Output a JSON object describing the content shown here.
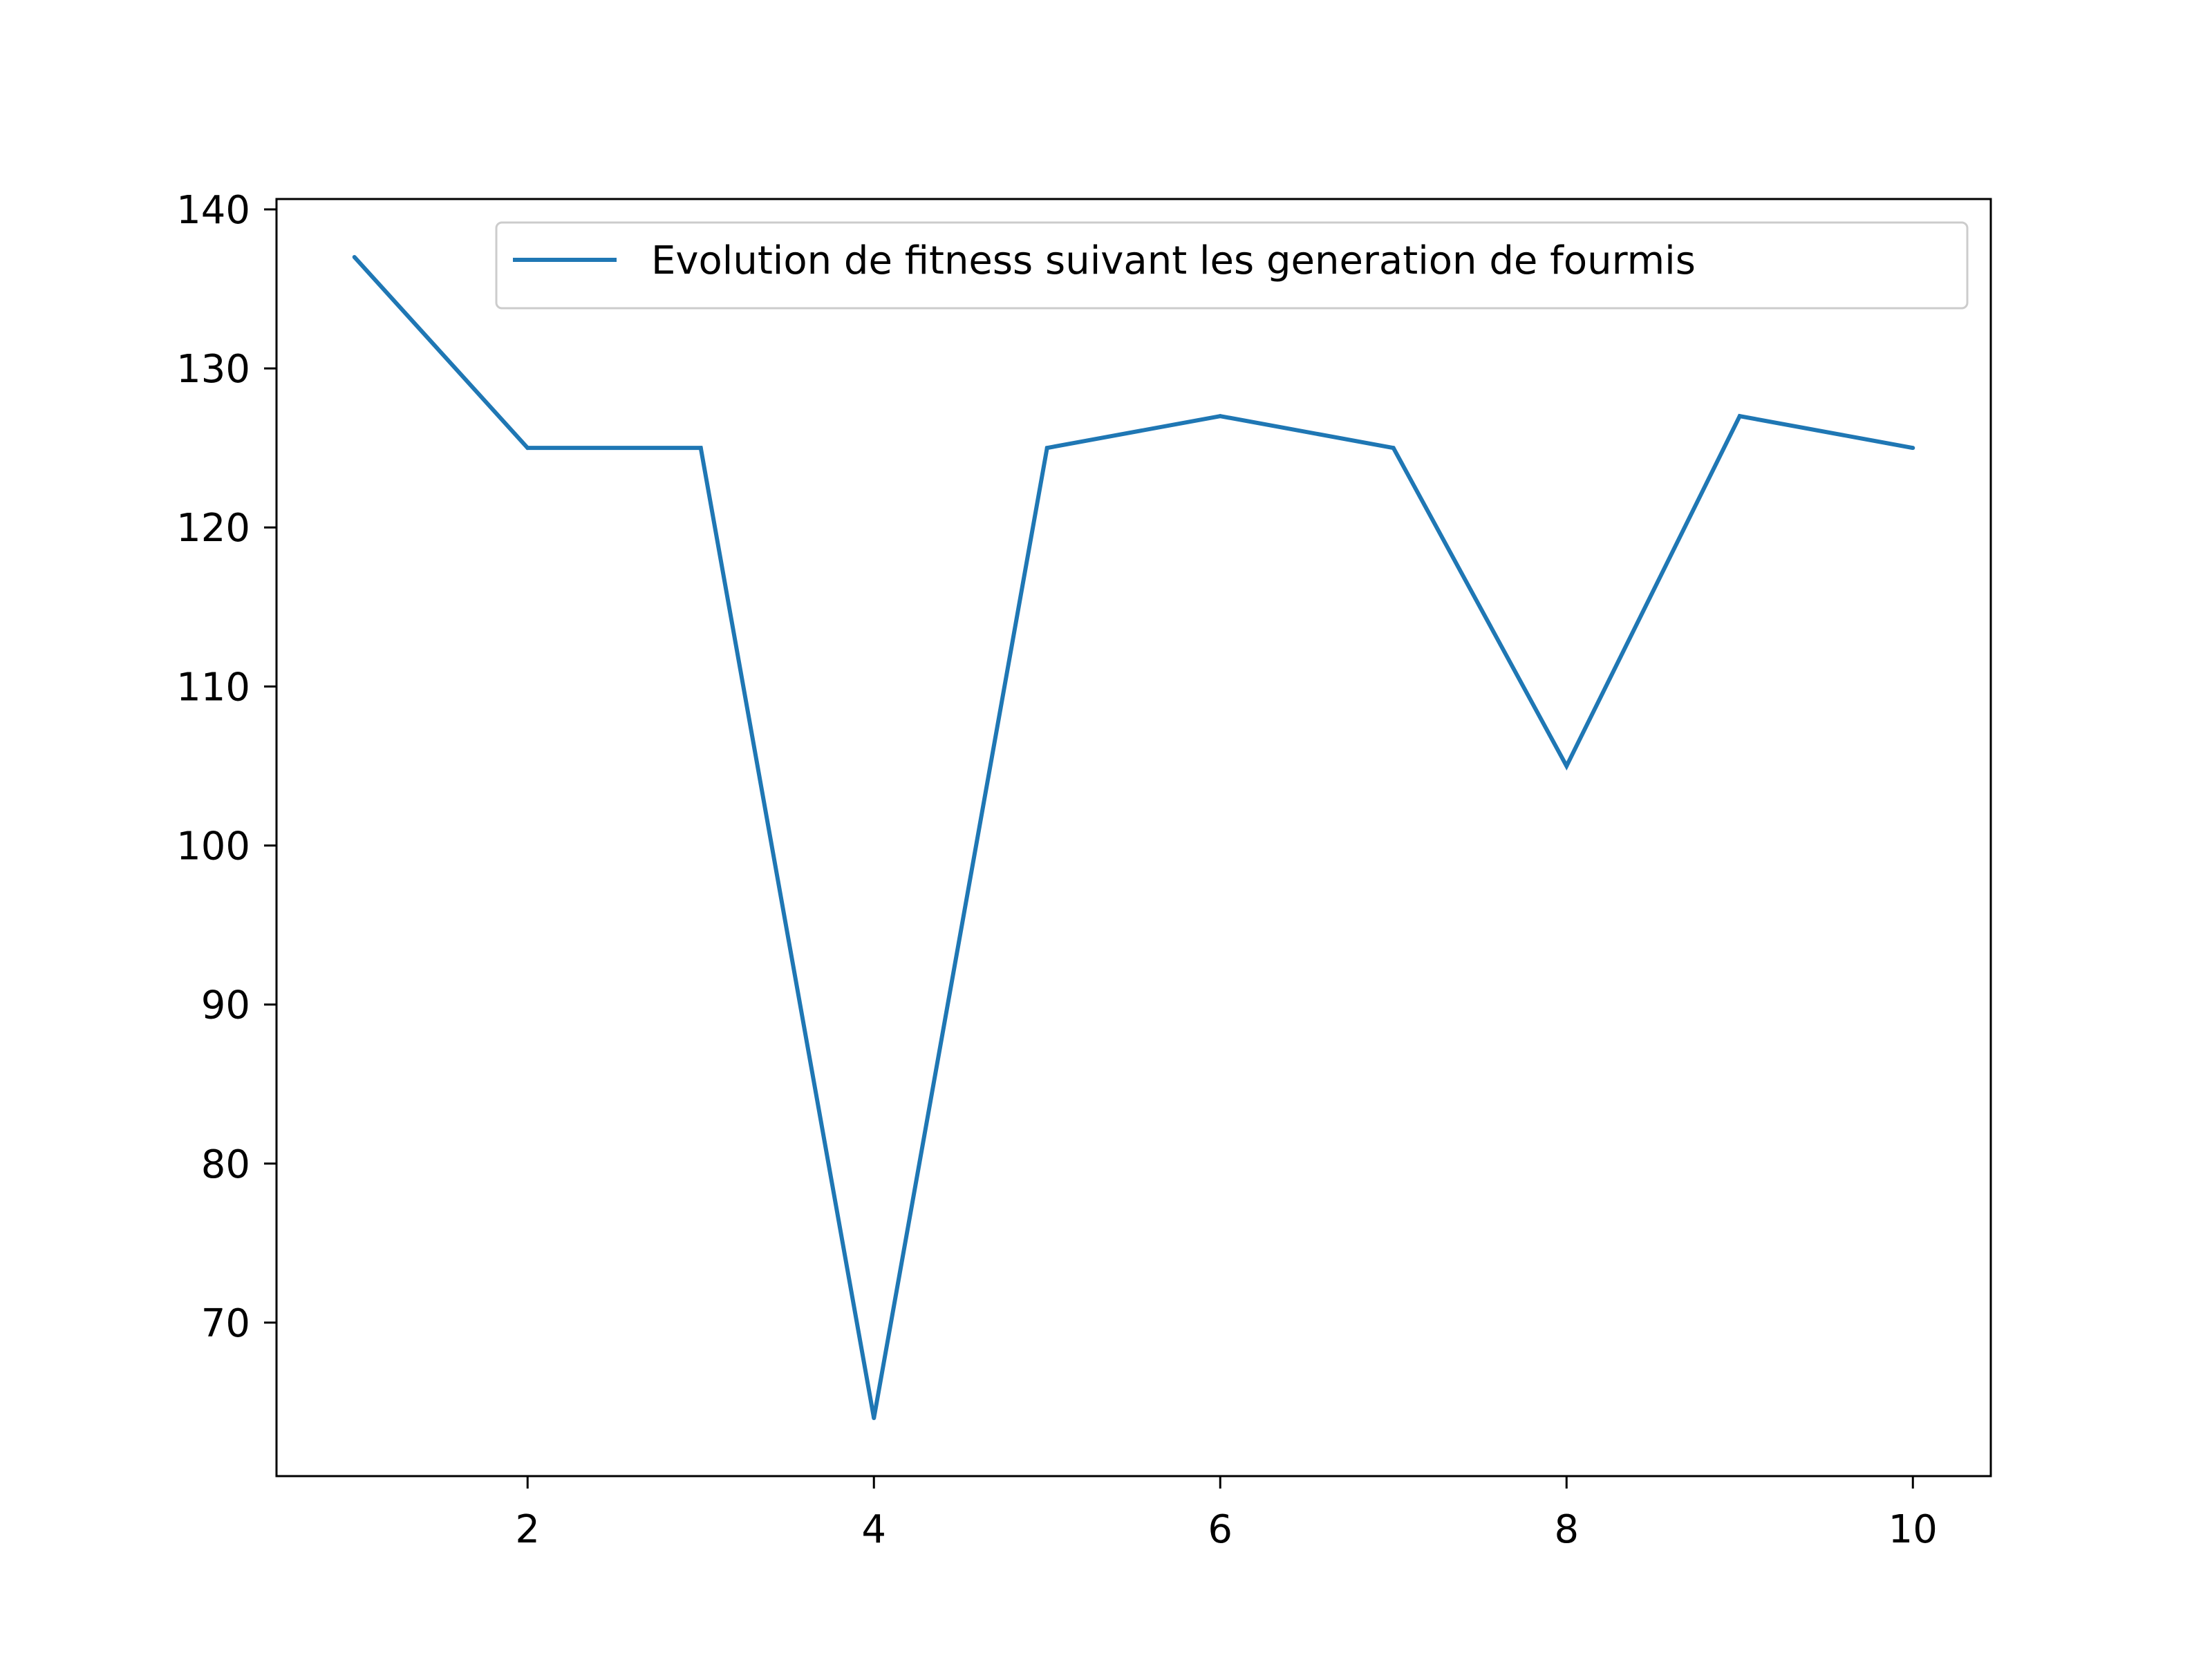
{
  "chart_data": {
    "type": "line",
    "title": "",
    "xlabel": "",
    "ylabel": "",
    "xlim": [
      0.55,
      10.45
    ],
    "ylim": [
      60.35,
      140.65
    ],
    "x_ticks": [
      2,
      4,
      6,
      8,
      10
    ],
    "y_ticks": [
      70,
      80,
      90,
      100,
      110,
      120,
      130,
      140
    ],
    "x_tick_labels": [
      "2",
      "4",
      "6",
      "8",
      "10"
    ],
    "y_tick_labels": [
      "70",
      "80",
      "90",
      "100",
      "110",
      "120",
      "130",
      "140"
    ],
    "grid": false,
    "legend_position": "top-right",
    "series": [
      {
        "name": "Evolution de fitness suivant les generation de fourmis",
        "color": "#1f77b4",
        "x": [
          1,
          2,
          3,
          4,
          5,
          6,
          7,
          8,
          9,
          10
        ],
        "y": [
          137,
          125,
          125,
          64,
          125,
          127,
          125,
          105,
          127,
          125
        ]
      }
    ]
  }
}
